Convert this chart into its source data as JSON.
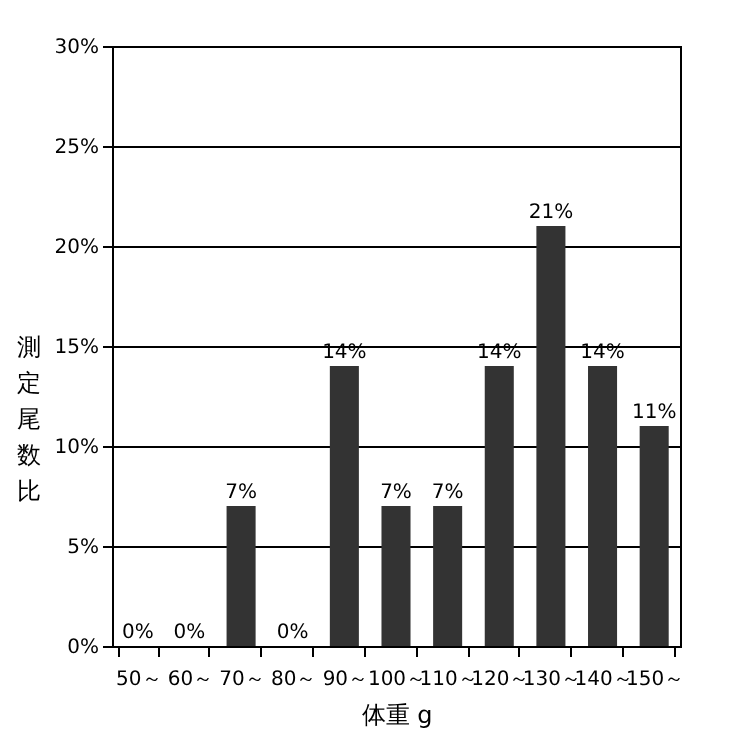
{
  "chart_data": {
    "type": "bar",
    "xlabel": "体重 g",
    "ylabel": "測定尾数比",
    "categories": [
      "50～",
      "60～",
      "70～",
      "80～",
      "90～",
      "100～",
      "110～",
      "120～",
      "130～",
      "140～",
      "150～"
    ],
    "values": [
      0,
      0,
      7,
      0,
      14,
      7,
      7,
      14,
      21,
      14,
      11
    ],
    "value_labels": [
      "0%",
      "0%",
      "7%",
      "0%",
      "14%",
      "7%",
      "7%",
      "14%",
      "21%",
      "14%",
      "11%"
    ],
    "color": "#333333",
    "ylim": [
      0,
      30
    ],
    "yticks": [
      {
        "value": 0,
        "label": "0%"
      },
      {
        "value": 5,
        "label": "5%"
      },
      {
        "value": 10,
        "label": "10%"
      },
      {
        "value": 15,
        "label": "15%"
      },
      {
        "value": 20,
        "label": "20%"
      },
      {
        "value": 25,
        "label": "25%"
      },
      {
        "value": 30,
        "label": "30%"
      }
    ],
    "grid": "y"
  }
}
